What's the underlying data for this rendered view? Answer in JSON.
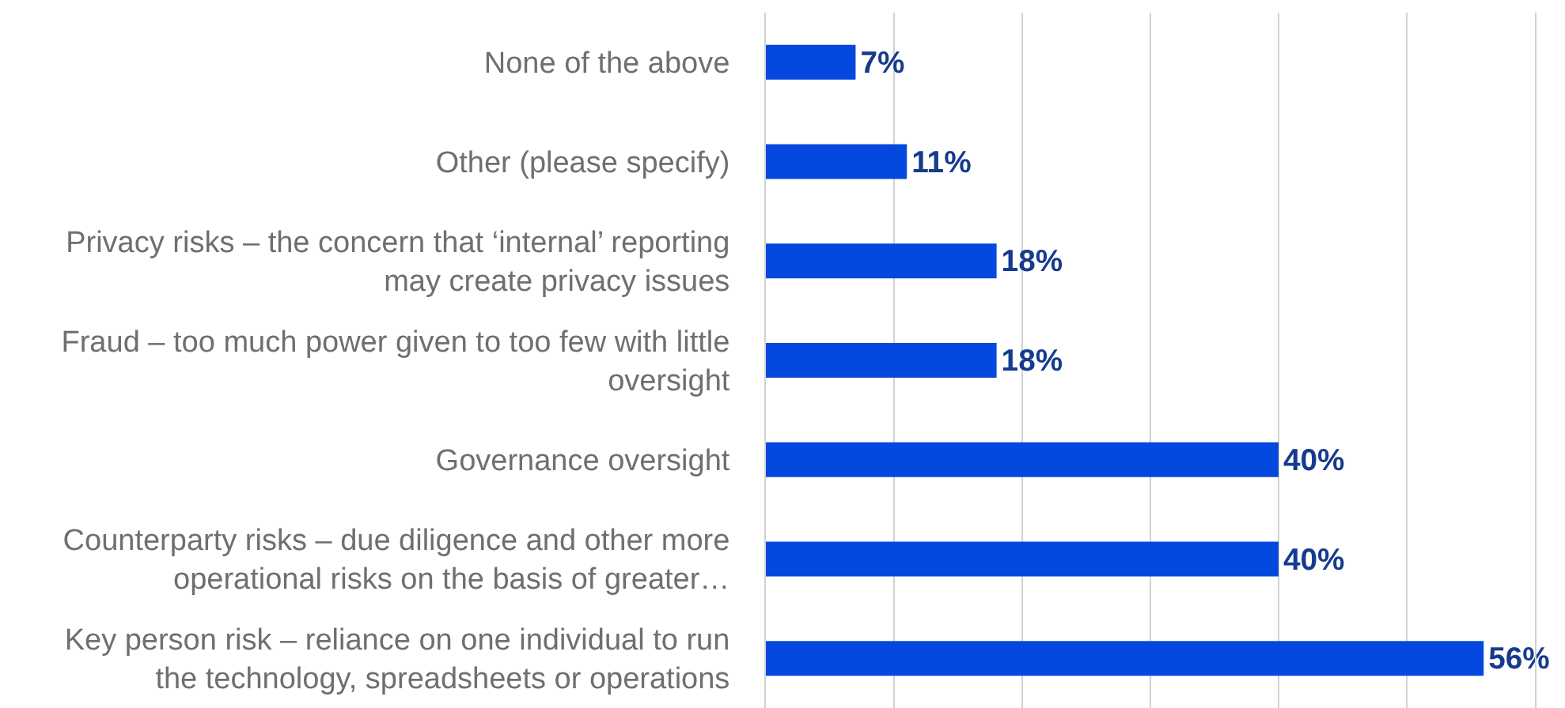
{
  "chart_data": {
    "type": "bar",
    "orientation": "horizontal",
    "categories": [
      "None of the above",
      "Other (please specify)",
      "Privacy risks – the concern that ‘internal’ reporting may create privacy issues",
      "Fraud – too much power given to too few with little oversight",
      "Governance oversight",
      "Counterparty risks – due diligence and other more operational risks on the basis of greater…",
      "Key person risk – reliance on one individual to run the technology, spreadsheets or operations"
    ],
    "values": [
      7,
      11,
      18,
      18,
      40,
      40,
      56
    ],
    "value_labels": [
      "7%",
      "11%",
      "18%",
      "18%",
      "40%",
      "40%",
      "56%"
    ],
    "color": "#0548df",
    "xlim": [
      0,
      60
    ],
    "xticks": [
      {
        "value": 0,
        "label": null
      },
      {
        "value": 10,
        "label": null
      },
      {
        "value": 20,
        "label": null
      },
      {
        "value": 30,
        "label": null
      },
      {
        "value": 40,
        "label": null
      },
      {
        "value": 50,
        "label": null
      },
      {
        "value": 60,
        "label": null
      }
    ],
    "grid": "x",
    "tick_labels": "y"
  }
}
